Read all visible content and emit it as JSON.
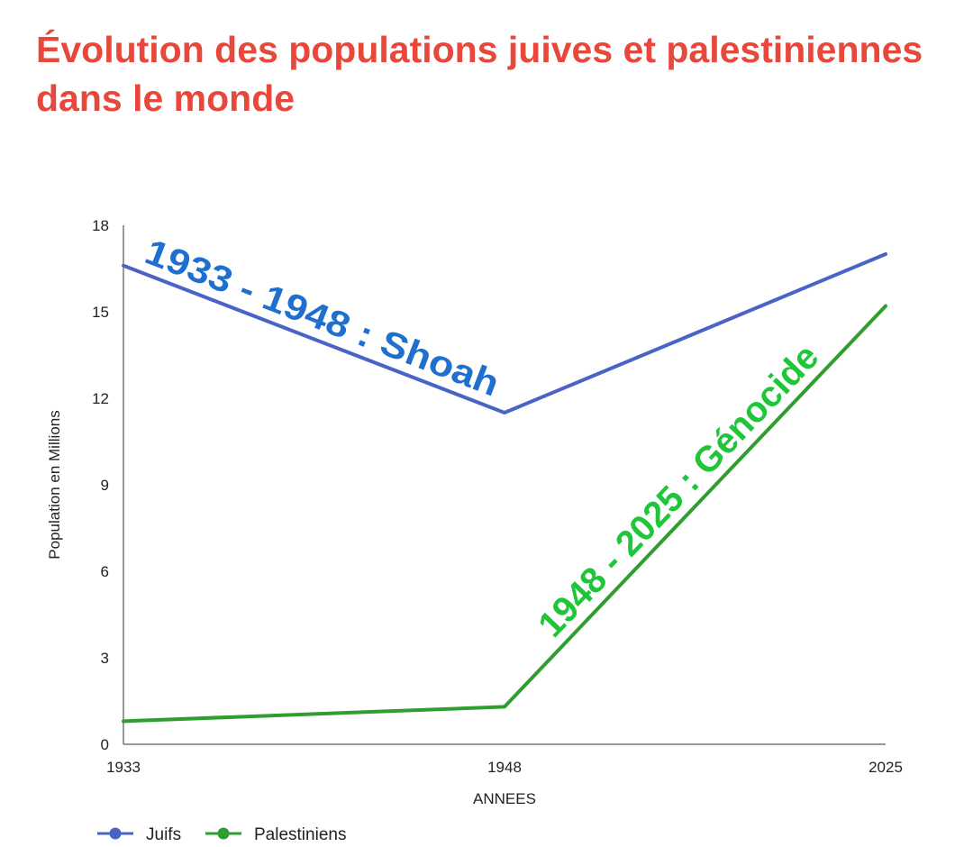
{
  "title": "Évolution des populations juives et palestiniennes dans le monde",
  "chart_data": {
    "type": "line",
    "title": "Évolution des populations juives et palestiniennes dans le monde",
    "x": [
      "1933",
      "1948",
      "2025"
    ],
    "xlabel": "ANNEES",
    "ylabel": "Population en Millions",
    "ylim": [
      0,
      18
    ],
    "yticks": [
      0,
      3,
      6,
      9,
      12,
      15,
      18
    ],
    "grid": false,
    "legend": "bottom-left",
    "series": [
      {
        "name": "Juifs",
        "color": "#4a63c6",
        "values": [
          16.6,
          11.5,
          17.0
        ]
      },
      {
        "name": "Palestiniens",
        "color": "#2f9e2f",
        "values": [
          0.8,
          1.3,
          15.2
        ]
      }
    ],
    "annotations": [
      {
        "text": "1933 - 1948 : Shoah",
        "color": "#1f6fcf",
        "series": "Juifs",
        "segment": [
          0,
          1
        ]
      },
      {
        "text": "1948 - 2025 : Génocide",
        "color": "#1fc63a",
        "series": "Palestiniens",
        "segment": [
          1,
          2
        ]
      }
    ]
  }
}
